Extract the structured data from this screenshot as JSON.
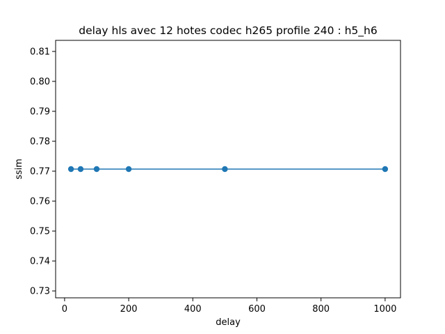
{
  "chart_data": {
    "type": "line",
    "title": "delay hls avec 12 hotes codec h265 profile 240 : h5_h6",
    "xlabel": "delay",
    "ylabel": "ssim",
    "x": [
      20,
      50,
      100,
      200,
      500,
      1000
    ],
    "series": [
      {
        "values": [
          0.7707,
          0.7707,
          0.7707,
          0.7707,
          0.7707,
          0.7707
        ],
        "color": "#1f77b4"
      }
    ],
    "xlim": [
      -28,
      1048
    ],
    "ylim": [
      0.7277,
      0.8137
    ],
    "xticks": [
      0,
      200,
      400,
      600,
      800,
      1000
    ],
    "xtick_labels": [
      "0",
      "200",
      "400",
      "600",
      "800",
      "1000"
    ],
    "yticks": [
      0.73,
      0.74,
      0.75,
      0.76,
      0.77,
      0.78,
      0.79,
      0.8,
      0.81
    ],
    "ytick_labels": [
      "0.73",
      "0.74",
      "0.75",
      "0.76",
      "0.77",
      "0.78",
      "0.79",
      "0.80",
      "0.81"
    ],
    "grid": false,
    "legend": "none",
    "marker": "circle"
  }
}
